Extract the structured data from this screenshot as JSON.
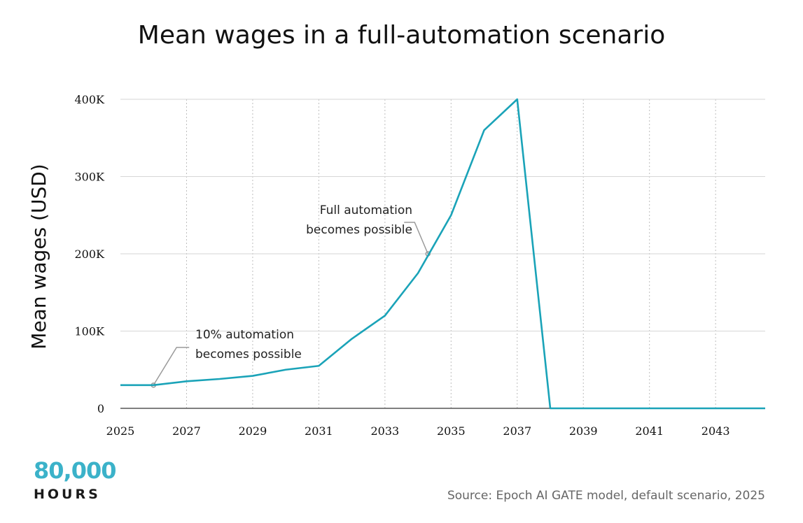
{
  "chart_data": {
    "type": "line",
    "title": "Mean wages in a full-automation scenario",
    "xlabel": "",
    "ylabel": "Mean wages (USD)",
    "xlim": [
      2025,
      2044.5
    ],
    "ylim": [
      0,
      400000
    ],
    "x_ticks": [
      2025,
      2027,
      2029,
      2031,
      2033,
      2035,
      2037,
      2039,
      2041,
      2043
    ],
    "x_tick_labels": [
      "2025",
      "2027",
      "2029",
      "2031",
      "2033",
      "2035",
      "2037",
      "2039",
      "2041",
      "2043"
    ],
    "y_ticks": [
      0,
      100000,
      200000,
      300000,
      400000
    ],
    "y_tick_labels": [
      "0",
      "100K",
      "200K",
      "300K",
      "400K"
    ],
    "grid": {
      "x": "dotted",
      "y": "solid"
    },
    "line_color": "#1aa3b8",
    "series": [
      {
        "x": [
          2025,
          2026,
          2027,
          2028,
          2029,
          2030,
          2031,
          2032,
          2033,
          2034,
          2035,
          2036,
          2037,
          2038,
          2039,
          2040,
          2041,
          2042,
          2043,
          2044.5
        ],
        "y": [
          30000,
          30000,
          35000,
          38000,
          42000,
          50000,
          55000,
          90000,
          120000,
          175000,
          250000,
          360000,
          400000,
          0,
          0,
          0,
          0,
          0,
          0,
          0
        ]
      }
    ],
    "annotations": [
      {
        "text_lines": [
          "10% automation",
          "becomes possible"
        ],
        "x": 2026,
        "y": 30000
      },
      {
        "text_lines": [
          "Full automation",
          "becomes possible"
        ],
        "x": 2034.3,
        "y": 200000
      }
    ]
  },
  "branding": {
    "logo_number": "80,000",
    "logo_word": "HOURS",
    "logo_color": "#3bb2c9"
  },
  "footer": {
    "source": "Source: Epoch AI GATE model, default scenario, 2025"
  }
}
